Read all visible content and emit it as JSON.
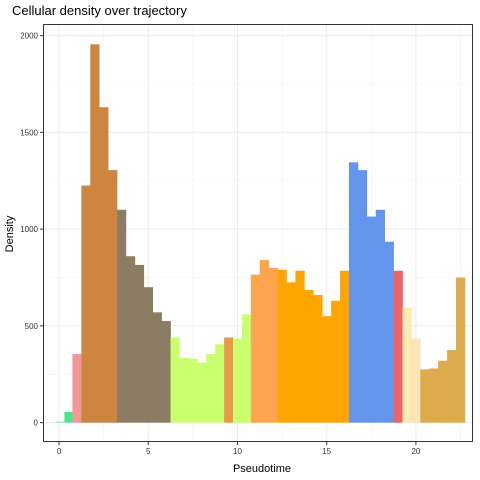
{
  "chart_data": {
    "type": "bar",
    "title": "Cellular density over trajectory",
    "xlabel": "Pseudotime",
    "ylabel": "Density",
    "xlim": [
      -0.9,
      23.2
    ],
    "ylim": [
      -100,
      2060
    ],
    "x_ticks": [
      0,
      5,
      10,
      15,
      20
    ],
    "y_ticks": [
      0,
      500,
      1000,
      1500,
      2000
    ],
    "grid": true,
    "legend": "none",
    "bin_width": 0.5,
    "bars": [
      {
        "x0": -0.2,
        "x1": 0.3,
        "value": 5,
        "color": "#7ef0c0"
      },
      {
        "x0": 0.3,
        "x1": 0.75,
        "value": 55,
        "color": "#4be58e"
      },
      {
        "x0": 0.75,
        "x1": 1.25,
        "value": 355,
        "color": "#f4979a"
      },
      {
        "x0": 1.25,
        "x1": 1.75,
        "value": 1225,
        "color": "#cd853f"
      },
      {
        "x0": 1.75,
        "x1": 2.25,
        "value": 1955,
        "color": "#cd853f"
      },
      {
        "x0": 2.25,
        "x1": 2.75,
        "value": 1630,
        "color": "#cd853f"
      },
      {
        "x0": 2.75,
        "x1": 3.25,
        "value": 1305,
        "color": "#cd853f"
      },
      {
        "x0": 3.25,
        "x1": 3.75,
        "value": 1100,
        "color": "#8b7d63"
      },
      {
        "x0": 3.75,
        "x1": 4.25,
        "value": 860,
        "color": "#8b7d63"
      },
      {
        "x0": 4.25,
        "x1": 4.75,
        "value": 815,
        "color": "#8b7d63"
      },
      {
        "x0": 4.75,
        "x1": 5.25,
        "value": 700,
        "color": "#8b7d63"
      },
      {
        "x0": 5.25,
        "x1": 5.75,
        "value": 570,
        "color": "#8b7d63"
      },
      {
        "x0": 5.75,
        "x1": 6.25,
        "value": 525,
        "color": "#8b7d63"
      },
      {
        "x0": 6.25,
        "x1": 6.75,
        "value": 440,
        "color": "#caff70"
      },
      {
        "x0": 6.75,
        "x1": 7.25,
        "value": 335,
        "color": "#caff70"
      },
      {
        "x0": 7.25,
        "x1": 7.75,
        "value": 330,
        "color": "#caff70"
      },
      {
        "x0": 7.75,
        "x1": 8.25,
        "value": 310,
        "color": "#caff70"
      },
      {
        "x0": 8.25,
        "x1": 8.75,
        "value": 355,
        "color": "#caff70"
      },
      {
        "x0": 8.75,
        "x1": 9.25,
        "value": 405,
        "color": "#caff70"
      },
      {
        "x0": 9.25,
        "x1": 9.75,
        "value": 440,
        "color": "#e8994a"
      },
      {
        "x0": 9.75,
        "x1": 10.25,
        "value": 435,
        "color": "#caff70"
      },
      {
        "x0": 10.25,
        "x1": 10.75,
        "value": 560,
        "color": "#caff70"
      },
      {
        "x0": 10.75,
        "x1": 11.25,
        "value": 765,
        "color": "#ffa54f"
      },
      {
        "x0": 11.25,
        "x1": 11.75,
        "value": 840,
        "color": "#ffa54f"
      },
      {
        "x0": 11.75,
        "x1": 12.25,
        "value": 800,
        "color": "#ffa54f"
      },
      {
        "x0": 12.25,
        "x1": 12.75,
        "value": 790,
        "color": "#ffa500"
      },
      {
        "x0": 12.75,
        "x1": 13.25,
        "value": 725,
        "color": "#ffa500"
      },
      {
        "x0": 13.25,
        "x1": 13.75,
        "value": 785,
        "color": "#ffa500"
      },
      {
        "x0": 13.75,
        "x1": 14.25,
        "value": 685,
        "color": "#ffa500"
      },
      {
        "x0": 14.25,
        "x1": 14.75,
        "value": 660,
        "color": "#ffa500"
      },
      {
        "x0": 14.75,
        "x1": 15.25,
        "value": 550,
        "color": "#ffa500"
      },
      {
        "x0": 15.25,
        "x1": 15.75,
        "value": 630,
        "color": "#ffa500"
      },
      {
        "x0": 15.75,
        "x1": 16.25,
        "value": 785,
        "color": "#ffa500"
      },
      {
        "x0": 16.25,
        "x1": 16.75,
        "value": 1345,
        "color": "#6495ed"
      },
      {
        "x0": 16.75,
        "x1": 17.25,
        "value": 1305,
        "color": "#6495ed"
      },
      {
        "x0": 17.25,
        "x1": 17.75,
        "value": 1065,
        "color": "#6495ed"
      },
      {
        "x0": 17.75,
        "x1": 18.25,
        "value": 1100,
        "color": "#6495ed"
      },
      {
        "x0": 18.25,
        "x1": 18.75,
        "value": 935,
        "color": "#6495ed"
      },
      {
        "x0": 18.75,
        "x1": 19.25,
        "value": 785,
        "color": "#ee6363"
      },
      {
        "x0": 19.25,
        "x1": 19.75,
        "value": 595,
        "color": "#ffecb3"
      },
      {
        "x0": 19.75,
        "x1": 20.25,
        "value": 435,
        "color": "#ffe4b5"
      },
      {
        "x0": 20.25,
        "x1": 20.75,
        "value": 275,
        "color": "#ddaa4c"
      },
      {
        "x0": 20.75,
        "x1": 21.25,
        "value": 280,
        "color": "#ddaa4c"
      },
      {
        "x0": 21.25,
        "x1": 21.75,
        "value": 320,
        "color": "#ddaa4c"
      },
      {
        "x0": 21.75,
        "x1": 22.25,
        "value": 375,
        "color": "#ddaa4c"
      },
      {
        "x0": 22.25,
        "x1": 22.75,
        "value": 750,
        "color": "#ddaa4c"
      }
    ]
  }
}
